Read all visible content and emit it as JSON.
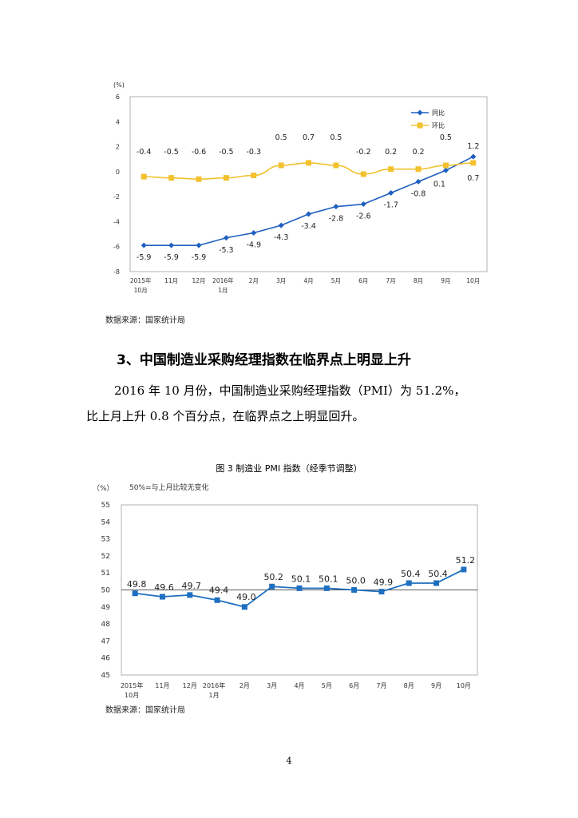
{
  "chart1": {
    "chart_data": {
      "type": "line",
      "categories": [
        "2015年10月",
        "11月",
        "12月",
        "2016年1月",
        "2月",
        "3月",
        "4月",
        "5月",
        "6月",
        "7月",
        "8月",
        "9月",
        "10月"
      ],
      "category_labels": [
        [
          "2015年",
          "10月"
        ],
        [
          "11月"
        ],
        [
          "12月"
        ],
        [
          "2016年",
          "1月"
        ],
        [
          "2月"
        ],
        [
          "3月"
        ],
        [
          "4月"
        ],
        [
          "5月"
        ],
        [
          "6月"
        ],
        [
          "7月"
        ],
        [
          "8月"
        ],
        [
          "9月"
        ],
        [
          "10月"
        ]
      ],
      "series": [
        {
          "name": "同比",
          "values": [
            -5.9,
            -5.9,
            -5.9,
            -5.3,
            -4.9,
            -4.3,
            -3.4,
            -2.8,
            -2.6,
            -1.7,
            -0.8,
            0.1,
            1.2
          ],
          "color": "#1f5fbf",
          "marker": "diamond"
        },
        {
          "name": "环比",
          "values": [
            -0.4,
            -0.5,
            -0.6,
            -0.5,
            -0.3,
            0.5,
            0.7,
            0.5,
            -0.2,
            0.2,
            0.2,
            0.5,
            0.7
          ],
          "color": "#f2c12e",
          "marker": "square"
        }
      ],
      "ylabel": "(%)",
      "ylim": [
        -8,
        6
      ],
      "yticks": [
        6,
        4,
        2,
        0,
        -2,
        -4,
        -6,
        -8
      ],
      "grid": false,
      "legend": "top-right"
    },
    "source": "数据来源：国家统计局"
  },
  "section_heading": "3、中国制造业采购经理指数在临界点上明显上升",
  "paragraph_lines": [
    "2016 年 10 月份，中国制造业采购经理指数（PMI）为 51.2%，",
    "比上月上升 0.8 个百分点，在临界点之上明显回升。"
  ],
  "chart2": {
    "figure_title": "图 3  制造业 PMI 指数（经季节调整）",
    "chart_data": {
      "type": "line",
      "title": "",
      "categories": [
        "2015年10月",
        "11月",
        "12月",
        "2016年1月",
        "2月",
        "3月",
        "4月",
        "5月",
        "6月",
        "7月",
        "8月",
        "9月",
        "10月"
      ],
      "category_labels": [
        [
          "2015年",
          "10月"
        ],
        [
          "11月"
        ],
        [
          "12月"
        ],
        [
          "2016年",
          "1月"
        ],
        [
          "2月"
        ],
        [
          "3月"
        ],
        [
          "4月"
        ],
        [
          "5月"
        ],
        [
          "6月"
        ],
        [
          "7月"
        ],
        [
          "8月"
        ],
        [
          "9月"
        ],
        [
          "10月"
        ]
      ],
      "series": [
        {
          "values": [
            49.8,
            49.6,
            49.7,
            49.4,
            49.0,
            50.2,
            50.1,
            50.1,
            50.0,
            49.9,
            50.4,
            50.4,
            51.2
          ],
          "color": "#1f6fc0",
          "marker": "square"
        }
      ],
      "value_labels": [
        "49.8",
        "49.6",
        "49.7",
        "49.4",
        "49.0",
        "50.2",
        "50.1",
        "50.1",
        "50.0",
        "49.9",
        "50.4",
        "50.4",
        "51.2"
      ],
      "ylabel": "（%）",
      "annotation": "50%=与上月比较无变化",
      "reference_line": 50,
      "ylim": [
        45,
        55
      ],
      "yticks": [
        55,
        54,
        53,
        52,
        51,
        50,
        49,
        48,
        47,
        46,
        45
      ],
      "grid": false
    },
    "source": "数据来源：国家统计局"
  },
  "page_number": "4"
}
